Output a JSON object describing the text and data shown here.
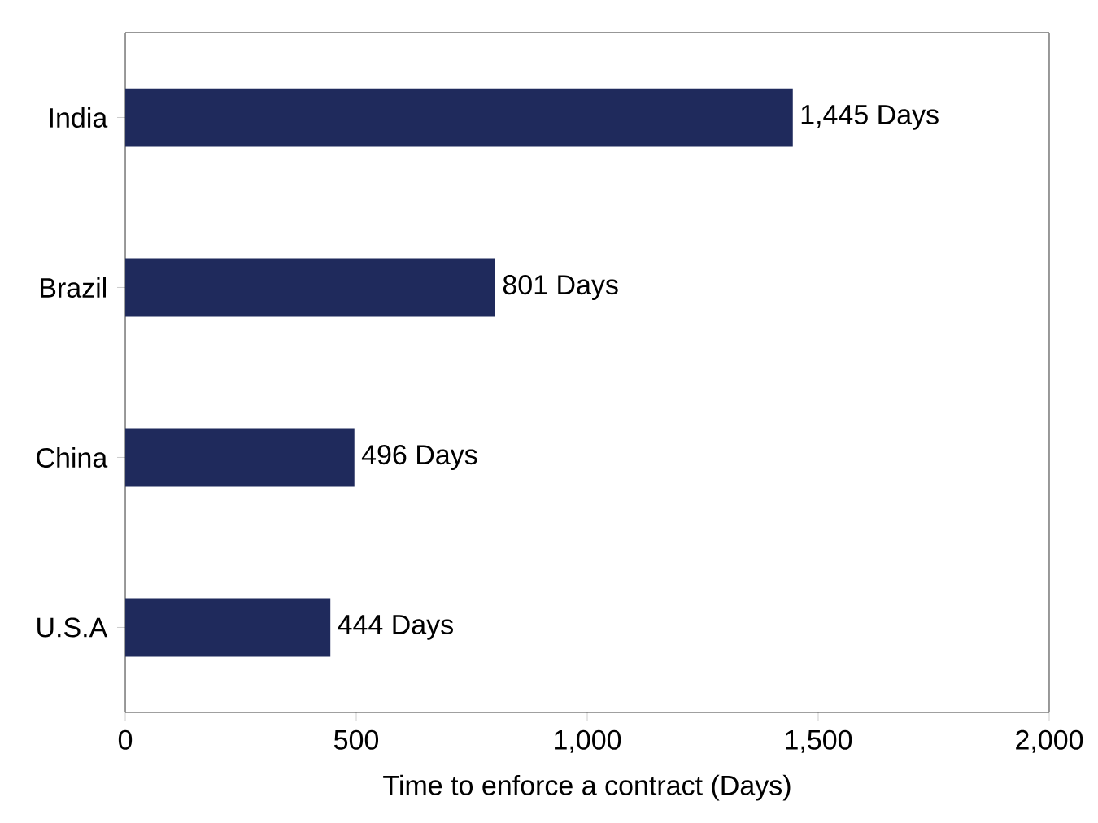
{
  "chart_data": {
    "type": "bar",
    "orientation": "horizontal",
    "xlabel": "Time to enforce a contract (Days)",
    "categories": [
      "India",
      "Brazil",
      "China",
      "U.S.A"
    ],
    "values": [
      1445,
      801,
      496,
      444
    ],
    "value_labels": [
      "1,445 Days",
      "801 Days",
      "496 Days",
      "444 Days"
    ],
    "color": "#1f2a5c",
    "xlim": [
      0,
      2000
    ],
    "xticks": [
      0,
      500,
      {
        "value": 1000,
        "label": "1,000"
      },
      {
        "value": 1500,
        "label": "1,500"
      },
      {
        "value": 2000,
        "label": "2,000"
      }
    ],
    "grid": false
  }
}
